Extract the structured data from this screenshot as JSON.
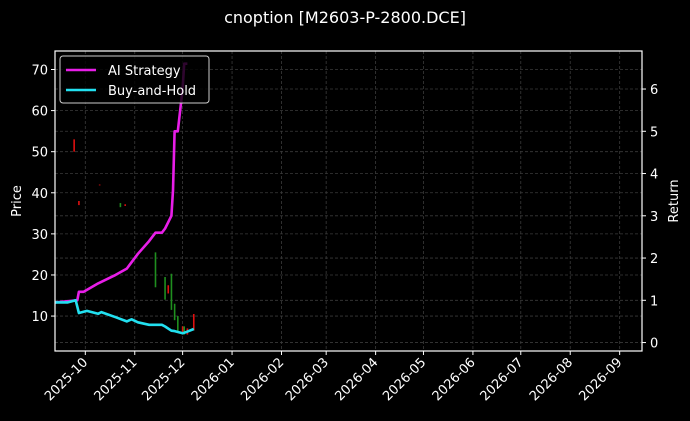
{
  "title": "cnoption [M2603-P-2800.DCE]",
  "colors": {
    "background": "#000000",
    "ai_strategy": "#e81ee8",
    "buy_and_hold": "#22e0f0",
    "candle_up": "#1f8f1f",
    "candle_down": "#e01010",
    "grid": "#3a3a3a",
    "axes": "#ffffff"
  },
  "legend": {
    "items": [
      {
        "label": "AI Strategy",
        "color": "#e81ee8"
      },
      {
        "label": "Buy-and-Hold",
        "color": "#22e0f0"
      }
    ]
  },
  "axes": {
    "left_label": "Price",
    "right_label": "Return",
    "left_ticks": [
      "10",
      "20",
      "30",
      "40",
      "50",
      "60",
      "70"
    ],
    "right_ticks": [
      "0",
      "1",
      "2",
      "3",
      "4",
      "5",
      "6"
    ],
    "x_ticks": [
      "2025-10",
      "2025-11",
      "2025-12",
      "2026-01",
      "2026-02",
      "2026-03",
      "2026-04",
      "2026-05",
      "2026-06",
      "2026-07",
      "2026-08",
      "2026-09"
    ]
  },
  "chart_data": {
    "type": "line",
    "title": "cnoption [M2603-P-2800.DCE]",
    "xlabel": "",
    "ylabel": "Price",
    "y2label": "Return",
    "ylim": [
      1.5,
      74.5
    ],
    "y2lim": [
      -0.2,
      6.9
    ],
    "xlim": [
      "2025-09-12",
      "2026-09-15"
    ],
    "grid": true,
    "legend_position": "upper left",
    "x_ticks": [
      "2025-10",
      "2025-11",
      "2025-12",
      "2026-01",
      "2026-02",
      "2026-03",
      "2026-04",
      "2026-05",
      "2026-06",
      "2026-07",
      "2026-08",
      "2026-09"
    ],
    "series": [
      {
        "name": "AI Strategy",
        "axis": "right",
        "x": [
          "2025-09-12",
          "2025-09-26",
          "2025-09-27",
          "2025-09-30",
          "2025-10-09",
          "2025-10-20",
          "2025-10-27",
          "2025-11-03",
          "2025-11-10",
          "2025-11-14",
          "2025-11-18",
          "2025-11-20",
          "2025-11-24",
          "2025-11-25",
          "2025-11-26",
          "2025-11-28",
          "2025-12-01",
          "2025-12-02",
          "2025-12-04"
        ],
        "values": [
          0.95,
          1.0,
          1.2,
          1.2,
          1.4,
          1.6,
          1.75,
          2.1,
          2.4,
          2.6,
          2.6,
          2.7,
          3.0,
          3.6,
          5.0,
          5.0,
          6.0,
          6.6,
          6.6
        ]
      },
      {
        "name": "Buy-and-Hold",
        "axis": "right",
        "x": [
          "2025-09-12",
          "2025-09-20",
          "2025-09-25",
          "2025-09-27",
          "2025-10-02",
          "2025-10-09",
          "2025-10-11",
          "2025-10-20",
          "2025-10-27",
          "2025-10-30",
          "2025-11-03",
          "2025-11-10",
          "2025-11-14",
          "2025-11-18",
          "2025-11-20",
          "2025-11-24",
          "2025-11-26",
          "2025-12-01",
          "2025-12-04",
          "2025-12-08"
        ],
        "values": [
          0.95,
          0.95,
          1.0,
          0.7,
          0.75,
          0.68,
          0.72,
          0.6,
          0.5,
          0.55,
          0.48,
          0.42,
          0.42,
          0.42,
          0.38,
          0.28,
          0.27,
          0.22,
          0.26,
          0.32
        ]
      }
    ],
    "candles": [
      {
        "date": "2025-09-24",
        "high": 53,
        "low": 50,
        "dir": "down"
      },
      {
        "date": "2025-09-27",
        "high": 38,
        "low": 37,
        "dir": "down"
      },
      {
        "date": "2025-10-10",
        "high": 42,
        "low": 41.8,
        "dir": "down"
      },
      {
        "date": "2025-10-23",
        "high": 37.5,
        "low": 36.5,
        "dir": "up"
      },
      {
        "date": "2025-10-26",
        "high": 37.2,
        "low": 36.8,
        "dir": "down"
      },
      {
        "date": "2025-11-14",
        "high": 25.5,
        "low": 17,
        "dir": "up"
      },
      {
        "date": "2025-11-20",
        "high": 19.5,
        "low": 14,
        "dir": "up"
      },
      {
        "date": "2025-11-22",
        "high": 17.5,
        "low": 15.5,
        "dir": "down"
      },
      {
        "date": "2025-11-24",
        "high": 20.3,
        "low": 11.5,
        "dir": "up"
      },
      {
        "date": "2025-11-26",
        "high": 13,
        "low": 9,
        "dir": "up"
      },
      {
        "date": "2025-11-28",
        "high": 10,
        "low": 6,
        "dir": "up"
      },
      {
        "date": "2025-12-01",
        "high": 7.5,
        "low": 6,
        "dir": "down"
      },
      {
        "date": "2025-12-02",
        "high": 7.5,
        "low": 5.5,
        "dir": "up"
      },
      {
        "date": "2025-12-04",
        "high": 7,
        "low": 5.5,
        "dir": "down"
      },
      {
        "date": "2025-12-08",
        "high": 10.5,
        "low": 6.5,
        "dir": "down"
      }
    ]
  }
}
